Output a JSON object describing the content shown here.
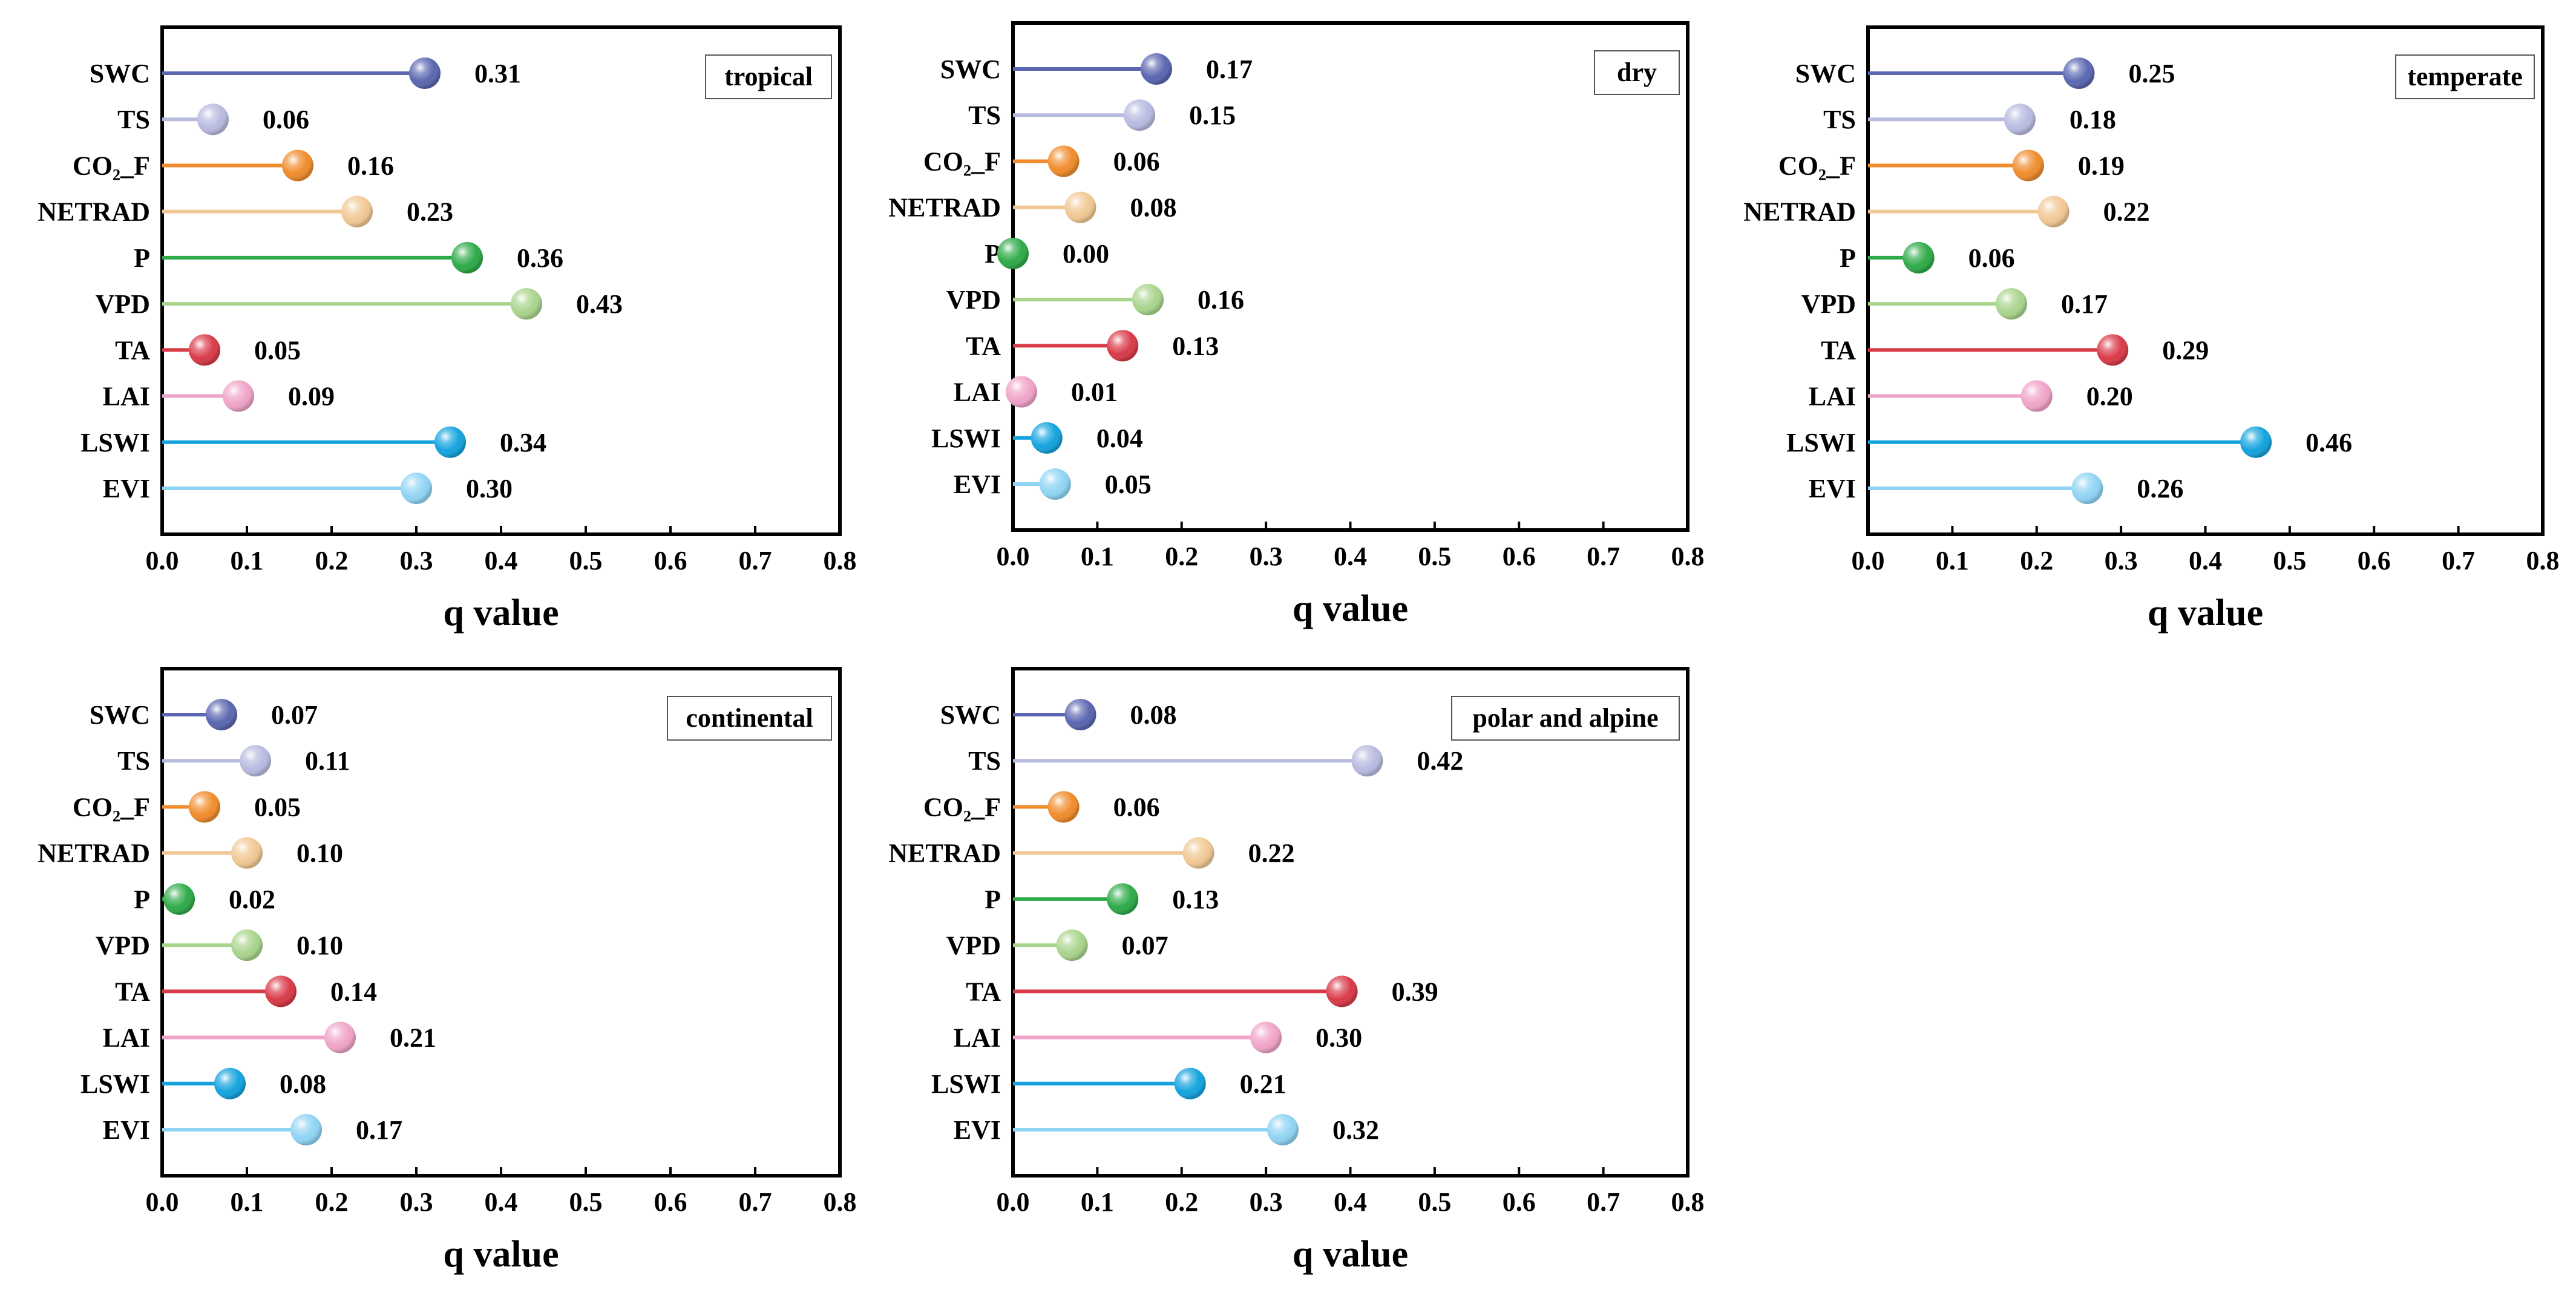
{
  "chart_data": [
    {
      "type": "lollipop",
      "title": "tropical",
      "xlabel": "q value",
      "xlim": [
        0,
        0.8
      ],
      "xticks": [
        "0.0",
        "0.1",
        "0.2",
        "0.3",
        "0.4",
        "0.5",
        "0.6",
        "0.7",
        "0.8"
      ],
      "categories": [
        "SWC",
        "TS",
        "CO₂_F",
        "NETRAD",
        "P",
        "VPD",
        "TA",
        "LAI",
        "LSWI",
        "EVI"
      ],
      "values": [
        0.31,
        0.06,
        0.16,
        0.23,
        0.36,
        0.43,
        0.05,
        0.09,
        0.34,
        0.3
      ],
      "labels": [
        "0.31",
        "0.06",
        "0.16",
        "0.23",
        "0.36",
        "0.43",
        "0.05",
        "0.09",
        "0.34",
        "0.30"
      ]
    },
    {
      "type": "lollipop",
      "title": "dry",
      "xlabel": "q value",
      "xlim": [
        0,
        0.8
      ],
      "xticks": [
        "0.0",
        "0.1",
        "0.2",
        "0.3",
        "0.4",
        "0.5",
        "0.6",
        "0.7",
        "0.8"
      ],
      "categories": [
        "SWC",
        "TS",
        "CO₂_F",
        "NETRAD",
        "P",
        "VPD",
        "TA",
        "LAI",
        "LSWI",
        "EVI"
      ],
      "values": [
        0.17,
        0.15,
        0.06,
        0.08,
        0.0,
        0.16,
        0.13,
        0.01,
        0.04,
        0.05
      ],
      "labels": [
        "0.17",
        "0.15",
        "0.06",
        "0.08",
        "0.00",
        "0.16",
        "0.13",
        "0.01",
        "0.04",
        "0.05"
      ]
    },
    {
      "type": "lollipop",
      "title": "temperate",
      "xlabel": "q value",
      "xlim": [
        0,
        0.8
      ],
      "xticks": [
        "0.0",
        "0.1",
        "0.2",
        "0.3",
        "0.4",
        "0.5",
        "0.6",
        "0.7",
        "0.8"
      ],
      "categories": [
        "SWC",
        "TS",
        "CO₂_F",
        "NETRAD",
        "P",
        "VPD",
        "TA",
        "LAI",
        "LSWI",
        "EVI"
      ],
      "values": [
        0.25,
        0.18,
        0.19,
        0.22,
        0.06,
        0.17,
        0.29,
        0.2,
        0.46,
        0.26
      ],
      "labels": [
        "0.25",
        "0.18",
        "0.19",
        "0.22",
        "0.06",
        "0.17",
        "0.29",
        "0.20",
        "0.46",
        "0.26"
      ]
    },
    {
      "type": "lollipop",
      "title": "continental",
      "xlabel": "q value",
      "xlim": [
        0,
        0.8
      ],
      "xticks": [
        "0.0",
        "0.1",
        "0.2",
        "0.3",
        "0.4",
        "0.5",
        "0.6",
        "0.7",
        "0.8"
      ],
      "categories": [
        "SWC",
        "TS",
        "CO₂_F",
        "NETRAD",
        "P",
        "VPD",
        "TA",
        "LAI",
        "LSWI",
        "EVI"
      ],
      "values": [
        0.07,
        0.11,
        0.05,
        0.1,
        0.02,
        0.1,
        0.14,
        0.21,
        0.08,
        0.17
      ],
      "labels": [
        "0.07",
        "0.11",
        "0.05",
        "0.10",
        "0.02",
        "0.10",
        "0.14",
        "0.21",
        "0.08",
        "0.17"
      ]
    },
    {
      "type": "lollipop",
      "title": "polar and alpine",
      "xlabel": "q value",
      "xlim": [
        0,
        0.8
      ],
      "xticks": [
        "0.0",
        "0.1",
        "0.2",
        "0.3",
        "0.4",
        "0.5",
        "0.6",
        "0.7",
        "0.8"
      ],
      "categories": [
        "SWC",
        "TS",
        "CO₂_F",
        "NETRAD",
        "P",
        "VPD",
        "TA",
        "LAI",
        "LSWI",
        "EVI"
      ],
      "values": [
        0.08,
        0.42,
        0.06,
        0.22,
        0.13,
        0.07,
        0.39,
        0.3,
        0.21,
        0.32
      ],
      "labels": [
        "0.08",
        "0.42",
        "0.06",
        "0.22",
        "0.13",
        "0.07",
        "0.39",
        "0.30",
        "0.21",
        "0.32"
      ]
    }
  ],
  "colors": [
    "#5a66b0",
    "#b8bbe0",
    "#f08c2c",
    "#f1c893",
    "#2eaa48",
    "#a9d48c",
    "#d93a48",
    "#f0a3c8",
    "#14a3de",
    "#8fd4f4"
  ]
}
